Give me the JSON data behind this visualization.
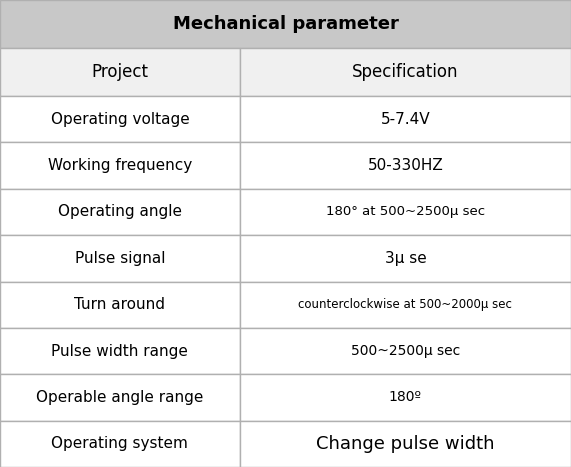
{
  "title": "Mechanical parameter",
  "header": [
    "Project",
    "Specification"
  ],
  "rows": [
    [
      "Operating voltage",
      "5-7.4V"
    ],
    [
      "Working frequency",
      "50-330HZ"
    ],
    [
      "Operating angle",
      "180° at 500~2500μ sec"
    ],
    [
      "Pulse signal",
      "3μ se"
    ],
    [
      "Turn around",
      "counterclockwise at 500~2000μ sec"
    ],
    [
      "Pulse width range",
      "500~2500μ sec"
    ],
    [
      "Operable angle range",
      "180º"
    ],
    [
      "Operating system",
      "Change pulse width"
    ]
  ],
  "title_bg": "#c8c8c8",
  "header_bg": "#f0f0f0",
  "row_bg": "#ffffff",
  "border_color": "#b0b0b0",
  "title_fontsize": 13,
  "header_fontsize": 12,
  "row_fontsize": 11,
  "col_split": 0.42,
  "fig_width": 5.71,
  "fig_height": 4.67,
  "dpi": 100,
  "spec_fontsizes": [
    11,
    11,
    9.5,
    11,
    8.5,
    10,
    10,
    13
  ],
  "spec_fontweights": [
    "normal",
    "normal",
    "normal",
    "normal",
    "normal",
    "normal",
    "normal",
    "normal"
  ]
}
